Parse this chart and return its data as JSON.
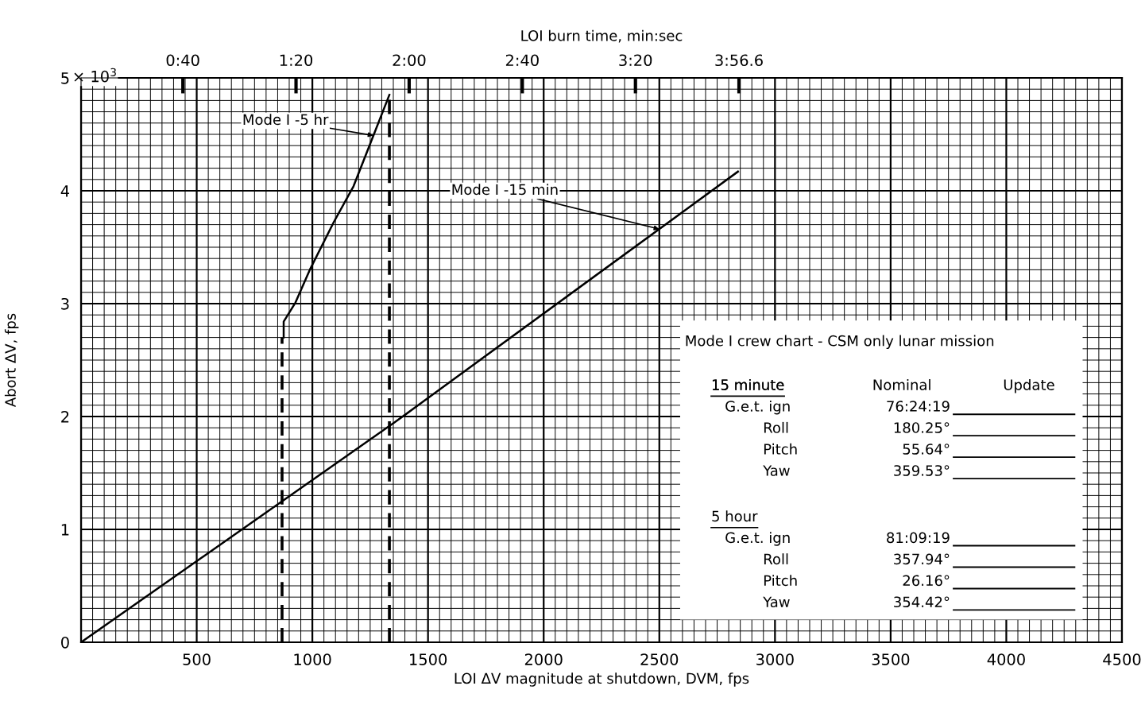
{
  "chart_data": {
    "type": "line",
    "xlabel": "LOI ΔV magnitude at shutdown, DVM, fps",
    "ylabel": "Abort ΔV, fps",
    "x2label": "LOI burn time, min:sec",
    "xlim": [
      0,
      4500
    ],
    "ylim": [
      0,
      5
    ],
    "x2lim": [
      4,
      372
    ],
    "xticks": [
      {
        "value": 0,
        "label": null
      },
      500,
      1000,
      1500,
      2000,
      2500,
      3000,
      3500,
      4000,
      4500
    ],
    "yticks": [
      0,
      1,
      2,
      3,
      4,
      5
    ],
    "x2ticks": [
      {
        "value": 40,
        "label": "0:40"
      },
      {
        "value": 80,
        "label": "1:20"
      },
      {
        "value": 120,
        "label": "2:00"
      },
      {
        "value": 160,
        "label": "2:40"
      },
      {
        "value": 200,
        "label": "3:20"
      },
      {
        "value": 236.6,
        "label": "3:56.6"
      }
    ],
    "grid": true,
    "marker": "none",
    "series": [
      {
        "color": "#000000",
        "line_style": "solid",
        "x": [
          0,
          1357,
          2840
        ],
        "values": [
          0,
          1.95,
          4.17
        ]
      },
      {
        "color": "#000000",
        "line_style": "solid",
        "x": [
          876,
          876,
          927,
          989,
          1092,
          1178,
          1264,
          1333
        ],
        "values": [
          2.7,
          2.84,
          3.01,
          3.3,
          3.72,
          4.04,
          4.49,
          4.85
        ]
      },
      {
        "color": "#000000",
        "line_style": "dashed",
        "x": [
          869,
          869
        ],
        "values": [
          0,
          2.7
        ]
      },
      {
        "color": "#000000",
        "line_style": "dashed",
        "x": [
          1333,
          1333
        ],
        "values": [
          0,
          4.85
        ]
      }
    ],
    "annotations": [
      {
        "text": "Mode I -5 hr",
        "x": 1264,
        "y": 4.49
      },
      {
        "text": "Mode I -15 min",
        "x": 2500,
        "y": 3.66
      },
      "Mode I crew chart - CSM only lunar mission",
      "15 minute",
      "Nominal",
      "Update",
      "G.e.t. ign",
      "76:24:19",
      "Roll",
      "180.25°",
      "Pitch",
      "55.64°",
      "Yaw",
      "359.53°",
      "5 hour",
      "G.e.t. ign",
      "81:09:19",
      "Roll",
      "357.94°",
      "Pitch",
      "26.16°",
      "Yaw",
      "354.42°",
      "× 10$^{3}$"
    ]
  }
}
